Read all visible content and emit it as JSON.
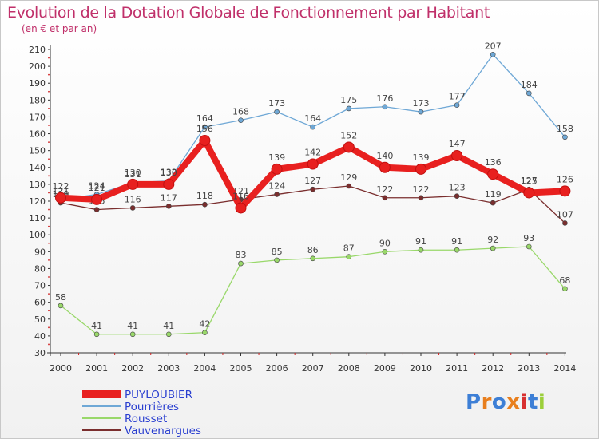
{
  "title": "Evolution de la Dotation Globale de Fonctionnement par Habitant",
  "subtitle": "(en € et par an)",
  "logo": "Proxiti",
  "chart_data": {
    "type": "line",
    "title": "Evolution de la Dotation Globale de Fonctionnement par Habitant",
    "ylabel": "(en € et par an)",
    "xlabel": "",
    "ylim": [
      30,
      210
    ],
    "ytick_step": 10,
    "grid": false,
    "legend_position": "bottom-left",
    "x": [
      "2000",
      "2001",
      "2002",
      "2003",
      "2004",
      "2005",
      "2006",
      "2007",
      "2008",
      "2009",
      "2010",
      "2011",
      "2012",
      "2013",
      "2014"
    ],
    "series": [
      {
        "name": "Pourrières",
        "color": "#6fa8d6",
        "values": [
          121,
          124,
          131,
          132,
          164,
          168,
          173,
          164,
          175,
          176,
          173,
          177,
          207,
          184,
          158
        ]
      },
      {
        "name": "Rousset",
        "color": "#99d86a",
        "values": [
          58,
          41,
          41,
          41,
          42,
          83,
          85,
          86,
          87,
          90,
          91,
          91,
          92,
          93,
          68
        ]
      },
      {
        "name": "Vauvenargues",
        "color": "#7a2e2e",
        "values": [
          119,
          115,
          116,
          117,
          118,
          121,
          124,
          127,
          129,
          122,
          122,
          123,
          119,
          127,
          107
        ]
      },
      {
        "name": "PUYLOUBIER",
        "color": "#e8201f",
        "values": [
          122,
          121,
          130,
          130,
          156,
          116,
          139,
          142,
          152,
          140,
          139,
          147,
          136,
          125,
          126
        ]
      }
    ]
  }
}
